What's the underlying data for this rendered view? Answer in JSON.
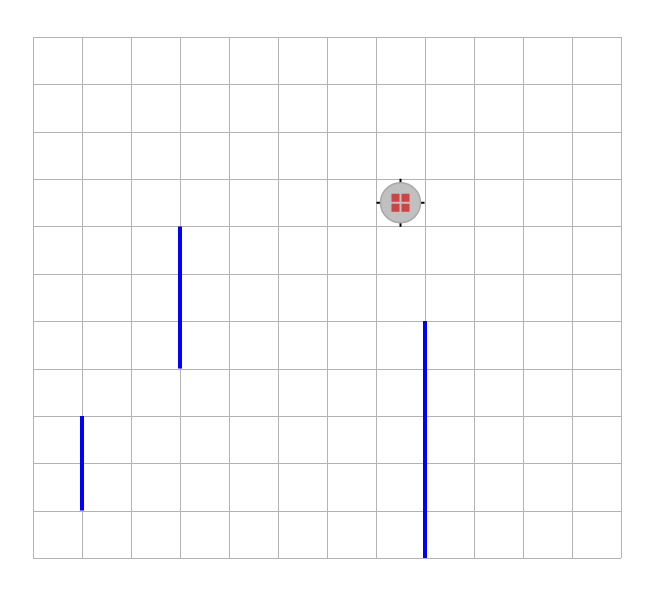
{
  "maze": {
    "columns": 12,
    "rows": 11,
    "grid_color": "#b3b3b3",
    "background_color": "#ffffff",
    "wall_color": "#0000ff",
    "walls": [
      {
        "orientation": "vertical",
        "col_line": 3,
        "row_start": 4,
        "row_end": 7
      },
      {
        "orientation": "vertical",
        "col_line": 1,
        "row_start": 8,
        "row_end": 10
      },
      {
        "orientation": "vertical",
        "col_line": 8,
        "row_start": 6,
        "row_end": 11
      }
    ]
  },
  "agent": {
    "icon": "robot-crosshair-icon",
    "col": 7,
    "row": 3,
    "body_color": "#c0c0c0",
    "outline_color": "#a8a8a8",
    "core_color": "#cc4444",
    "tick_color": "#000000"
  }
}
